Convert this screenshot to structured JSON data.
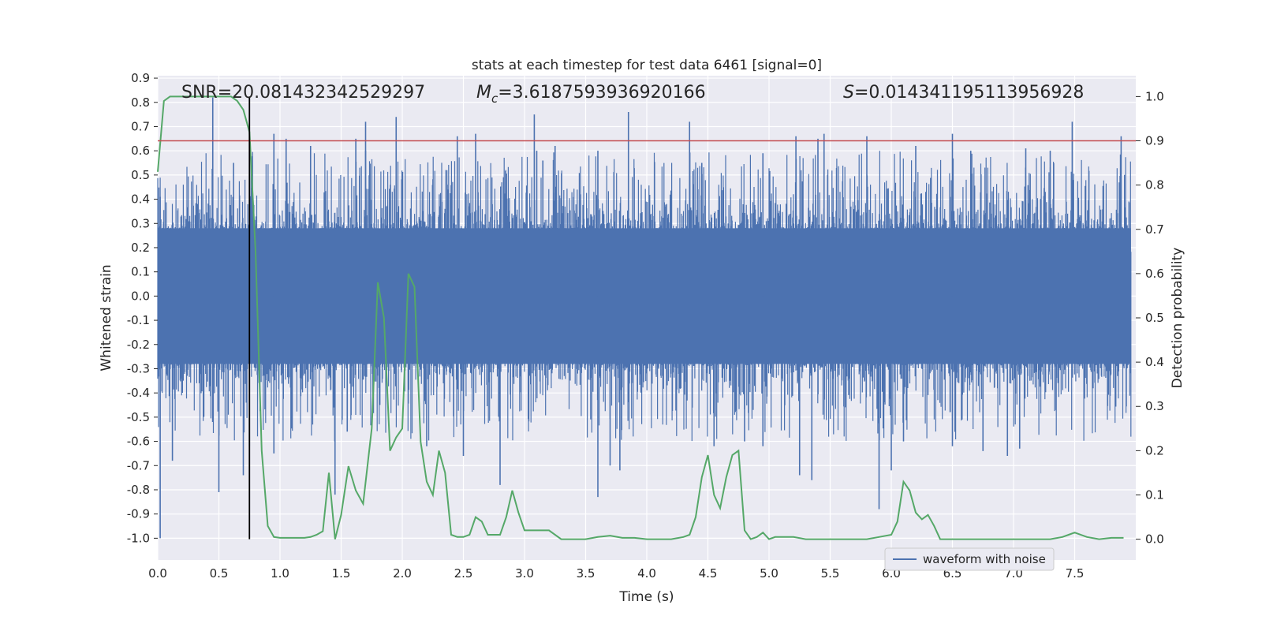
{
  "chart_data": {
    "type": "line",
    "title": "stats at each timestep for test data 6461 [signal=0]",
    "xlabel": "Time (s)",
    "ylabel": "Whitened strain",
    "y2label": "Detection probability",
    "xlim": [
      0.0,
      8.0
    ],
    "ylim": [
      -1.09,
      0.91
    ],
    "y2lim": [
      -0.047,
      1.047
    ],
    "xticks": [
      "0.0",
      "0.5",
      "1.0",
      "1.5",
      "2.0",
      "2.5",
      "3.0",
      "3.5",
      "4.0",
      "4.5",
      "5.0",
      "5.5",
      "6.0",
      "6.5",
      "7.0",
      "7.5"
    ],
    "yticks": [
      "0.9",
      "0.8",
      "0.7",
      "0.6",
      "0.5",
      "0.4",
      "0.3",
      "0.2",
      "0.1",
      "0.0",
      "-0.1",
      "-0.2",
      "-0.3",
      "-0.4",
      "-0.5",
      "-0.6",
      "-0.7",
      "-0.8",
      "-0.9",
      "-1.0"
    ],
    "y2ticks": [
      "0.0",
      "0.1",
      "0.2",
      "0.3",
      "0.4",
      "0.5",
      "0.6",
      "0.7",
      "0.8",
      "0.9",
      "1.0"
    ],
    "grid": true,
    "legend": {
      "placement": "lower-center-right",
      "entries": [
        "waveform with noise"
      ]
    },
    "annotations": {
      "snr": "SNR=20.081432342529297",
      "mc_symbol": "M",
      "mc_sub": "c",
      "mc_value": "=3.6187593936920166",
      "s_symbol": "S",
      "s_value": "=0.014341195113956928"
    },
    "threshold_y2": 0.9,
    "marker_x": 0.75,
    "colors": {
      "waveform": "#4c72b0",
      "probability": "#55a868",
      "threshold": "#c44e52",
      "marker": "#000000",
      "background": "#eaeaf2",
      "grid": "#ffffff"
    },
    "waveform": {
      "name": "waveform with noise",
      "note": "dense noisy strain series; envelope values in strain units",
      "spikes_up": [
        [
          0.02,
          0.41
        ],
        [
          0.45,
          0.82
        ],
        [
          0.62,
          0.55
        ],
        [
          0.95,
          0.67
        ],
        [
          1.05,
          0.65
        ],
        [
          1.25,
          0.62
        ],
        [
          1.62,
          0.65
        ],
        [
          1.7,
          0.6
        ],
        [
          1.7,
          0.72
        ],
        [
          1.95,
          0.74
        ],
        [
          2.45,
          0.66
        ],
        [
          2.6,
          0.67
        ],
        [
          3.1,
          0.6
        ],
        [
          3.15,
          0.56
        ],
        [
          3.08,
          0.75
        ],
        [
          3.25,
          0.62
        ],
        [
          3.6,
          0.6
        ],
        [
          3.85,
          0.76
        ],
        [
          4.35,
          0.72
        ],
        [
          4.45,
          0.55
        ],
        [
          4.95,
          0.59
        ],
        [
          5.22,
          0.66
        ],
        [
          5.4,
          0.65
        ],
        [
          5.45,
          0.67
        ],
        [
          5.8,
          0.66
        ],
        [
          6.2,
          0.62
        ],
        [
          6.5,
          0.67
        ],
        [
          6.65,
          0.6
        ],
        [
          7.1,
          0.61
        ],
        [
          7.3,
          0.6
        ],
        [
          7.48,
          0.72
        ],
        [
          7.88,
          0.66
        ]
      ],
      "spikes_down": [
        [
          0.02,
          -1.0
        ],
        [
          0.12,
          -0.68
        ],
        [
          0.5,
          -0.81
        ],
        [
          0.7,
          -0.74
        ],
        [
          0.75,
          -0.62
        ],
        [
          0.95,
          -0.65
        ],
        [
          1.45,
          -0.82
        ],
        [
          1.55,
          -0.56
        ],
        [
          2.2,
          -0.62
        ],
        [
          2.5,
          -0.66
        ],
        [
          2.8,
          -0.78
        ],
        [
          3.6,
          -0.83
        ],
        [
          3.7,
          -0.7
        ],
        [
          3.78,
          -0.72
        ],
        [
          4.55,
          -0.62
        ],
        [
          4.8,
          -0.6
        ],
        [
          4.95,
          -0.62
        ],
        [
          5.25,
          -0.74
        ],
        [
          5.35,
          -0.76
        ],
        [
          5.9,
          -0.88
        ],
        [
          6.0,
          -0.72
        ],
        [
          6.1,
          -0.6
        ],
        [
          6.5,
          -0.62
        ],
        [
          6.75,
          -0.64
        ],
        [
          6.95,
          -0.66
        ],
        [
          7.05,
          -0.63
        ]
      ],
      "core_band": [
        -0.28,
        0.28
      ]
    },
    "probability": {
      "name": "detection probability",
      "x": [
        0.0,
        0.05,
        0.1,
        0.15,
        0.2,
        0.3,
        0.4,
        0.5,
        0.55,
        0.6,
        0.65,
        0.7,
        0.75,
        0.8,
        0.85,
        0.9,
        0.95,
        1.0,
        1.05,
        1.1,
        1.15,
        1.2,
        1.25,
        1.3,
        1.35,
        1.4,
        1.45,
        1.5,
        1.56,
        1.62,
        1.68,
        1.75,
        1.8,
        1.85,
        1.9,
        1.95,
        2.0,
        2.05,
        2.1,
        2.15,
        2.2,
        2.25,
        2.3,
        2.35,
        2.4,
        2.45,
        2.5,
        2.55,
        2.6,
        2.65,
        2.7,
        2.75,
        2.8,
        2.85,
        2.9,
        2.95,
        3.0,
        3.05,
        3.1,
        3.15,
        3.2,
        3.3,
        3.4,
        3.5,
        3.6,
        3.7,
        3.8,
        3.9,
        4.0,
        4.1,
        4.2,
        4.3,
        4.35,
        4.4,
        4.45,
        4.5,
        4.55,
        4.6,
        4.65,
        4.7,
        4.75,
        4.8,
        4.85,
        4.9,
        4.95,
        5.0,
        5.05,
        5.1,
        5.15,
        5.2,
        5.3,
        5.4,
        5.5,
        5.6,
        5.7,
        5.8,
        5.9,
        6.0,
        6.05,
        6.1,
        6.15,
        6.2,
        6.25,
        6.3,
        6.35,
        6.4,
        6.45,
        6.5,
        6.6,
        6.7,
        6.8,
        6.9,
        7.0,
        7.1,
        7.2,
        7.3,
        7.4,
        7.45,
        7.5,
        7.6,
        7.7,
        7.8,
        7.9
      ],
      "y": [
        0.83,
        0.99,
        1.0,
        1.0,
        1.0,
        1.0,
        1.0,
        1.0,
        1.0,
        1.0,
        0.99,
        0.97,
        0.92,
        0.65,
        0.2,
        0.03,
        0.005,
        0.003,
        0.003,
        0.003,
        0.003,
        0.003,
        0.005,
        0.01,
        0.018,
        0.15,
        0.0,
        0.055,
        0.165,
        0.11,
        0.08,
        0.25,
        0.58,
        0.5,
        0.2,
        0.23,
        0.25,
        0.6,
        0.57,
        0.22,
        0.13,
        0.1,
        0.2,
        0.15,
        0.01,
        0.005,
        0.005,
        0.01,
        0.05,
        0.04,
        0.01,
        0.01,
        0.01,
        0.05,
        0.11,
        0.06,
        0.02,
        0.02,
        0.02,
        0.02,
        0.02,
        0.0,
        0.0,
        0.0,
        0.005,
        0.008,
        0.003,
        0.003,
        0.0,
        0.0,
        0.0,
        0.005,
        0.01,
        0.05,
        0.14,
        0.19,
        0.1,
        0.07,
        0.14,
        0.19,
        0.2,
        0.02,
        0.0,
        0.005,
        0.015,
        0.0,
        0.005,
        0.005,
        0.005,
        0.005,
        0.0,
        0.0,
        0.0,
        0.0,
        0.0,
        0.0,
        0.005,
        0.01,
        0.04,
        0.13,
        0.11,
        0.06,
        0.045,
        0.055,
        0.03,
        0.0,
        0.0,
        0.0,
        0.0,
        0.0,
        0.0,
        0.0,
        0.0,
        0.0,
        0.0,
        0.0,
        0.005,
        0.01,
        0.015,
        0.005,
        0.0,
        0.003,
        0.003
      ]
    }
  }
}
